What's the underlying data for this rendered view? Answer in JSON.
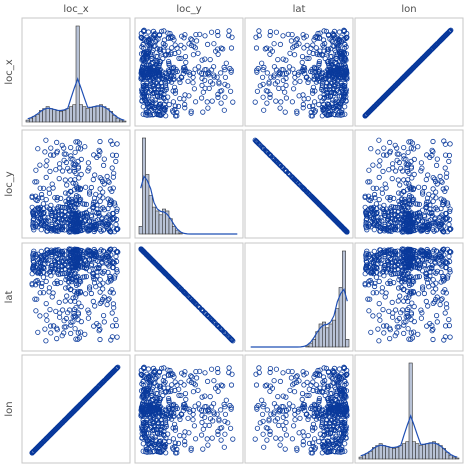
{
  "chart_data": {
    "type": "scatter",
    "variables": [
      "loc_x",
      "loc_y",
      "lat",
      "lon"
    ],
    "diagonal": "histogram",
    "off_diagonal": "scatter",
    "ranges": {
      "loc_x": [
        -10,
        10
      ],
      "loc_y": [
        0,
        10
      ],
      "lat": [
        0,
        10
      ],
      "lon": [
        -10,
        10
      ]
    },
    "histograms": {
      "loc_x": [
        2,
        4,
        6,
        8,
        12,
        14,
        16,
        14,
        13,
        12,
        11,
        12,
        14,
        16,
        18,
        100,
        18,
        16,
        14,
        15,
        16,
        17,
        18,
        16,
        14,
        11,
        7,
        4,
        2,
        1
      ],
      "loc_y": [
        8,
        100,
        62,
        40,
        28,
        24,
        20,
        26,
        24,
        16,
        8,
        4,
        1,
        0,
        0,
        0,
        0,
        0,
        0,
        0,
        0,
        0,
        0,
        0,
        0,
        0,
        0,
        0,
        0,
        0
      ],
      "lat": [
        0,
        0,
        0,
        0,
        0,
        0,
        0,
        0,
        0,
        0,
        0,
        0,
        0,
        0,
        0,
        0,
        0,
        1,
        4,
        8,
        16,
        24,
        26,
        20,
        24,
        28,
        40,
        62,
        100,
        8
      ],
      "lon": [
        2,
        4,
        6,
        8,
        12,
        14,
        16,
        14,
        13,
        12,
        11,
        12,
        14,
        16,
        18,
        100,
        18,
        16,
        14,
        15,
        16,
        17,
        18,
        16,
        14,
        11,
        7,
        4,
        2,
        1
      ]
    },
    "colors": {
      "marker": "#0a3a9c",
      "kde": "#1f4fb4",
      "bar": "#b8c2d6",
      "bar_edge": "#333333",
      "frame": "#c7c7c7"
    }
  }
}
